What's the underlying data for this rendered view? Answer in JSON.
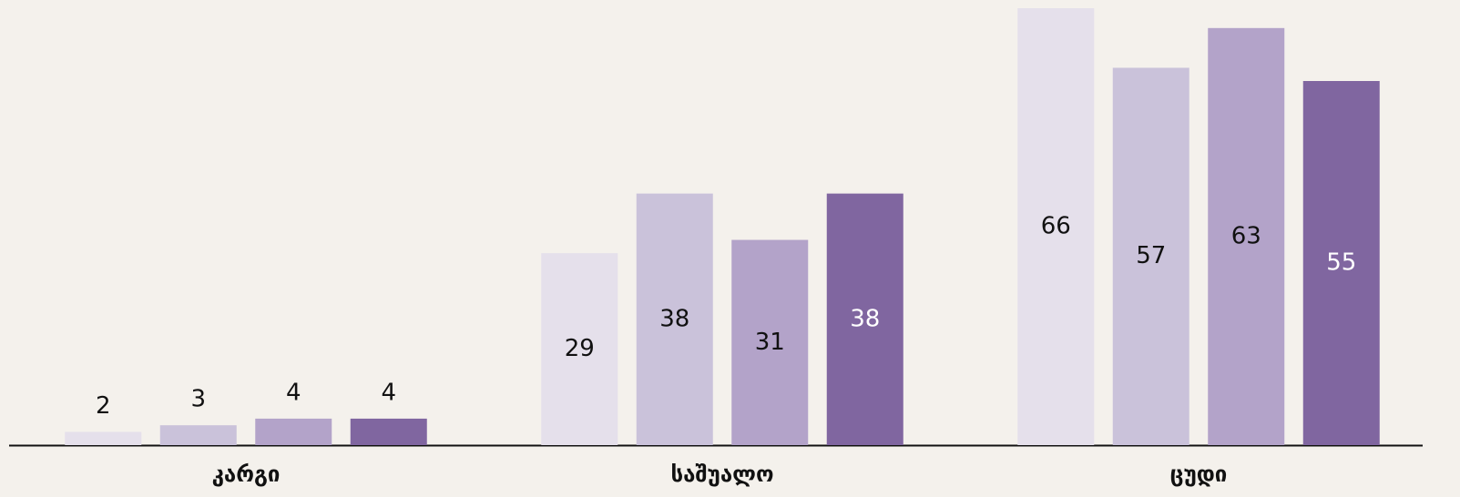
{
  "chart_data": {
    "type": "bar",
    "categories": [
      "კარგი",
      "საშუალო",
      "ცუდი"
    ],
    "series": [
      {
        "color": "#e5e0eb",
        "values": [
          2,
          29,
          66
        ]
      },
      {
        "color": "#cac2da",
        "values": [
          3,
          38,
          57
        ]
      },
      {
        "color": "#b3a3c9",
        "values": [
          4,
          31,
          63
        ]
      },
      {
        "color": "#8066a0",
        "label_color": "#ffffff",
        "values": [
          4,
          38,
          55
        ]
      }
    ]
  }
}
